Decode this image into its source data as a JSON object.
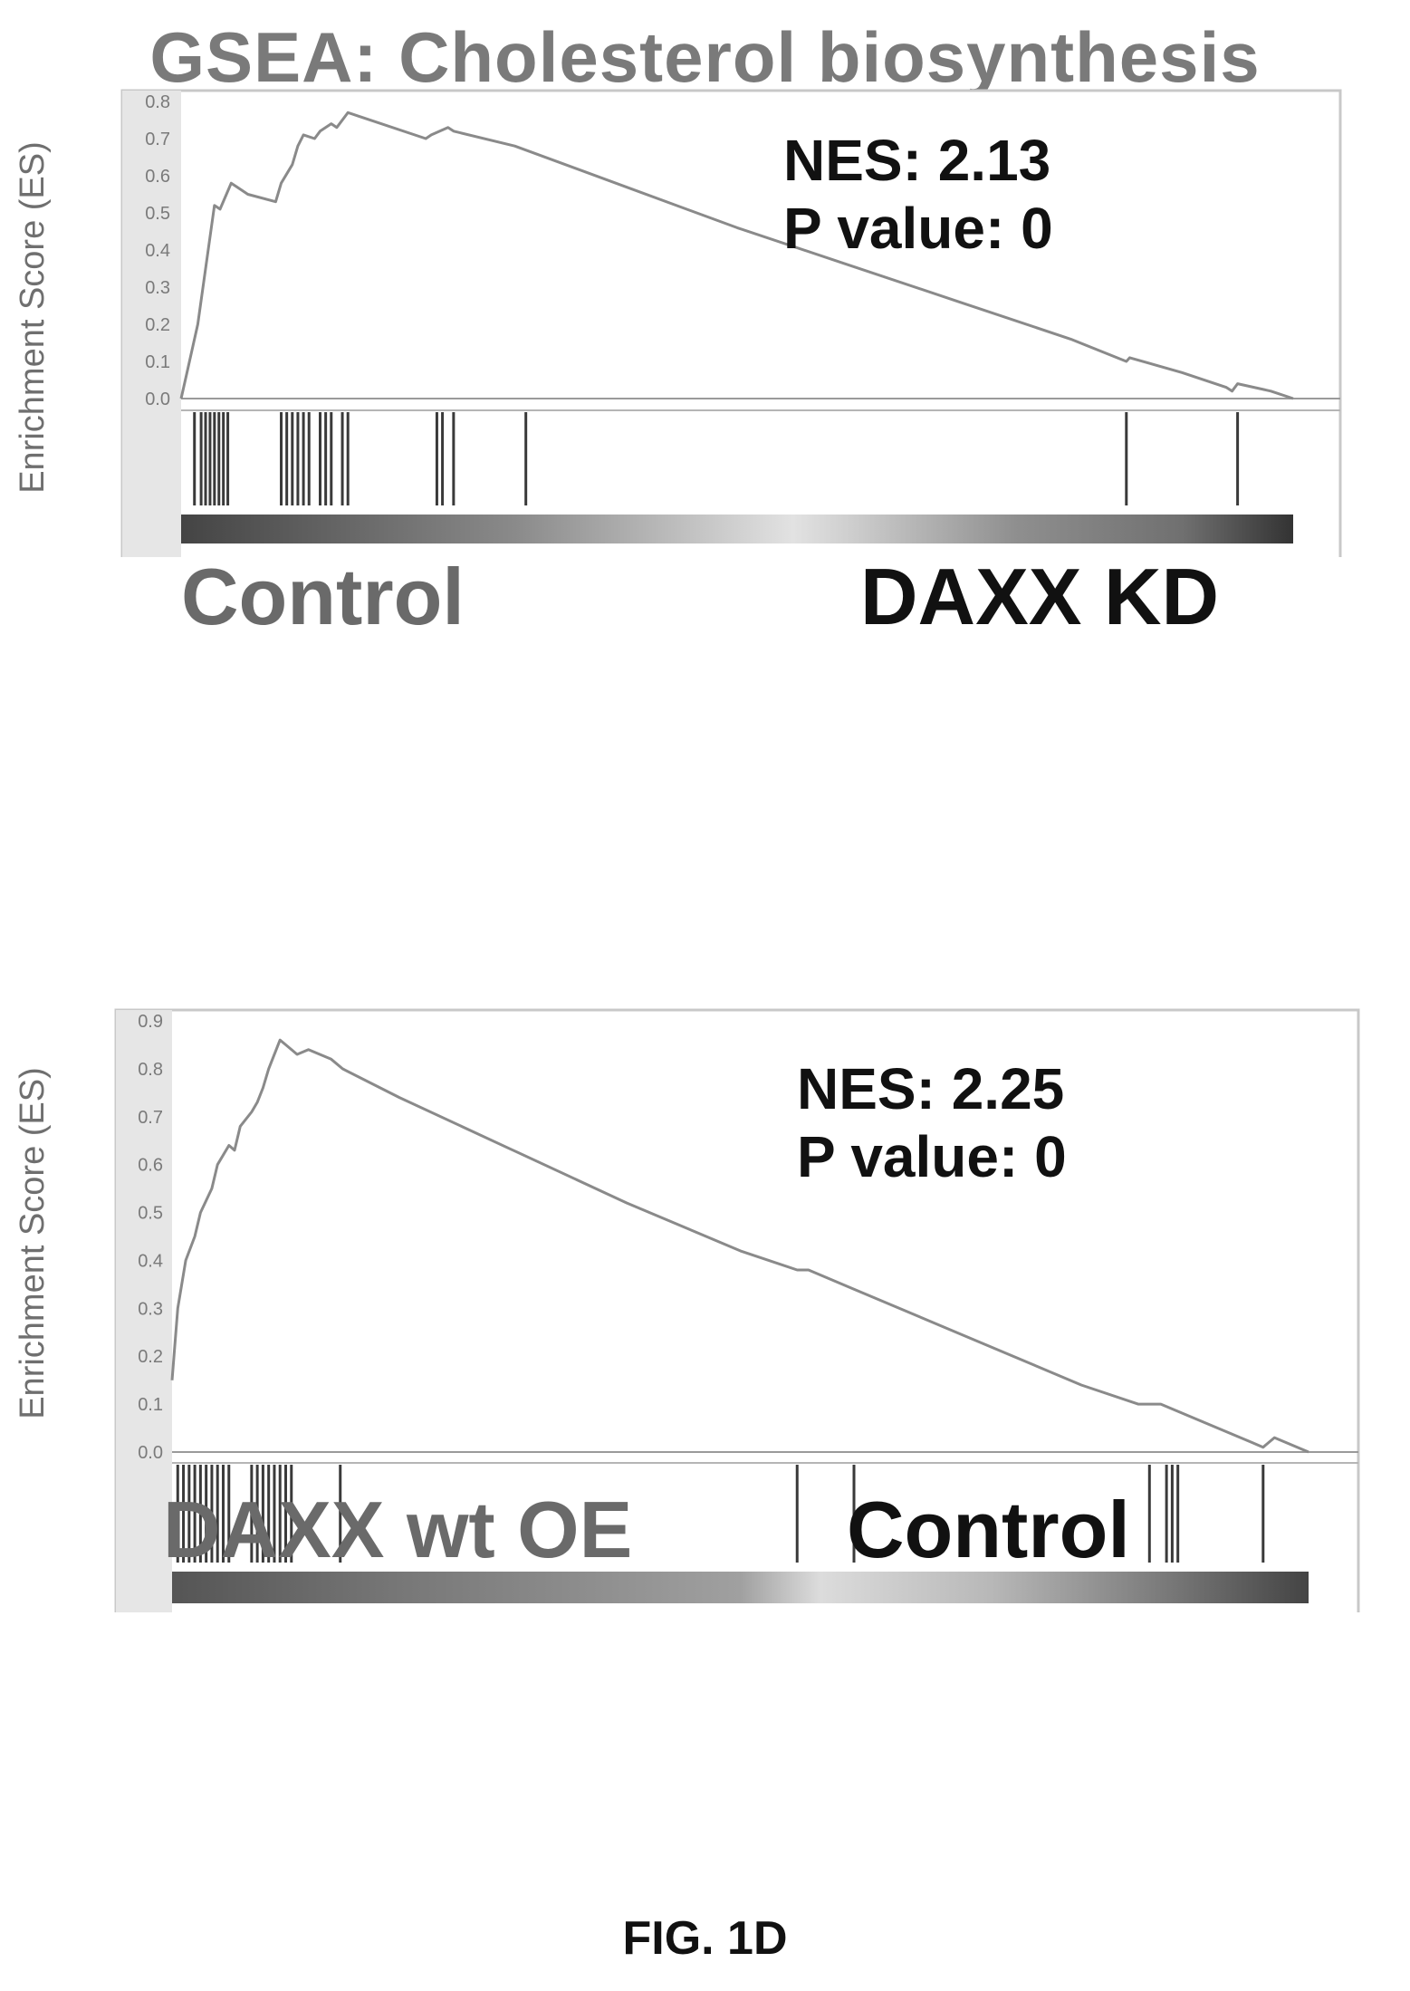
{
  "title": "GSEA: Cholesterol biosynthesis",
  "figure_label": "FIG. 1D",
  "chart_data": [
    {
      "type": "line",
      "ylabel": "Enrichment Score (ES)",
      "ylim": [
        0,
        0.8
      ],
      "yticks": [
        "0.8",
        "0.7",
        "0.6",
        "0.5",
        "0.4",
        "0.3",
        "0.2",
        "0.1",
        "0.0"
      ],
      "stats": [
        "NES: 2.13",
        "P value: 0"
      ],
      "group_left": "Control",
      "group_right": "DAXX KD",
      "grid": false,
      "series": [
        {
          "x": [
            0,
            0.006,
            0.015,
            0.03,
            0.035,
            0.045,
            0.05,
            0.06,
            0.085,
            0.09,
            0.1,
            0.105,
            0.11,
            0.12,
            0.125,
            0.135,
            0.14,
            0.15,
            0.16,
            0.22,
            0.225,
            0.24,
            0.245,
            0.3,
            0.4,
            0.5,
            0.6,
            0.7,
            0.8,
            0.85,
            0.853,
            0.9,
            0.94,
            0.945,
            0.95,
            0.98,
            1.0
          ],
          "y": [
            0.0,
            0.08,
            0.2,
            0.52,
            0.51,
            0.58,
            0.57,
            0.55,
            0.53,
            0.58,
            0.63,
            0.68,
            0.71,
            0.7,
            0.72,
            0.74,
            0.73,
            0.77,
            0.76,
            0.7,
            0.71,
            0.73,
            0.72,
            0.68,
            0.57,
            0.46,
            0.36,
            0.26,
            0.16,
            0.1,
            0.11,
            0.07,
            0.03,
            0.02,
            0.04,
            0.02,
            0.0
          ]
        }
      ],
      "hits": [
        0.012,
        0.018,
        0.022,
        0.026,
        0.03,
        0.034,
        0.038,
        0.042,
        0.09,
        0.095,
        0.1,
        0.105,
        0.11,
        0.115,
        0.125,
        0.13,
        0.135,
        0.145,
        0.15,
        0.23,
        0.235,
        0.245,
        0.31,
        0.85,
        0.95
      ]
    },
    {
      "type": "line",
      "ylabel": "Enrichment Score (ES)",
      "ylim": [
        0,
        0.9
      ],
      "yticks": [
        "0.9",
        "0.8",
        "0.7",
        "0.6",
        "0.5",
        "0.4",
        "0.3",
        "0.2",
        "0.1",
        "0.0"
      ],
      "stats": [
        "NES: 2.25",
        "P value: 0"
      ],
      "group_left": "DAXX wt OE",
      "group_right": "Control",
      "grid": false,
      "series": [
        {
          "x": [
            0,
            0.005,
            0.012,
            0.02,
            0.025,
            0.035,
            0.04,
            0.05,
            0.055,
            0.06,
            0.07,
            0.075,
            0.08,
            0.085,
            0.095,
            0.1,
            0.11,
            0.12,
            0.14,
            0.15,
            0.2,
            0.3,
            0.4,
            0.5,
            0.55,
            0.56,
            0.6,
            0.7,
            0.8,
            0.85,
            0.87,
            0.9,
            0.95,
            0.96,
            0.97,
            1.0
          ],
          "y": [
            0.15,
            0.3,
            0.4,
            0.45,
            0.5,
            0.55,
            0.6,
            0.64,
            0.63,
            0.68,
            0.71,
            0.73,
            0.76,
            0.8,
            0.86,
            0.85,
            0.83,
            0.84,
            0.82,
            0.8,
            0.74,
            0.63,
            0.52,
            0.42,
            0.38,
            0.38,
            0.34,
            0.24,
            0.14,
            0.1,
            0.1,
            0.07,
            0.02,
            0.01,
            0.03,
            0.0
          ]
        }
      ],
      "hits": [
        0.005,
        0.01,
        0.015,
        0.02,
        0.025,
        0.03,
        0.035,
        0.04,
        0.045,
        0.05,
        0.07,
        0.075,
        0.08,
        0.085,
        0.09,
        0.095,
        0.1,
        0.105,
        0.148,
        0.55,
        0.6,
        0.86,
        0.875,
        0.88,
        0.885,
        0.96
      ]
    }
  ]
}
